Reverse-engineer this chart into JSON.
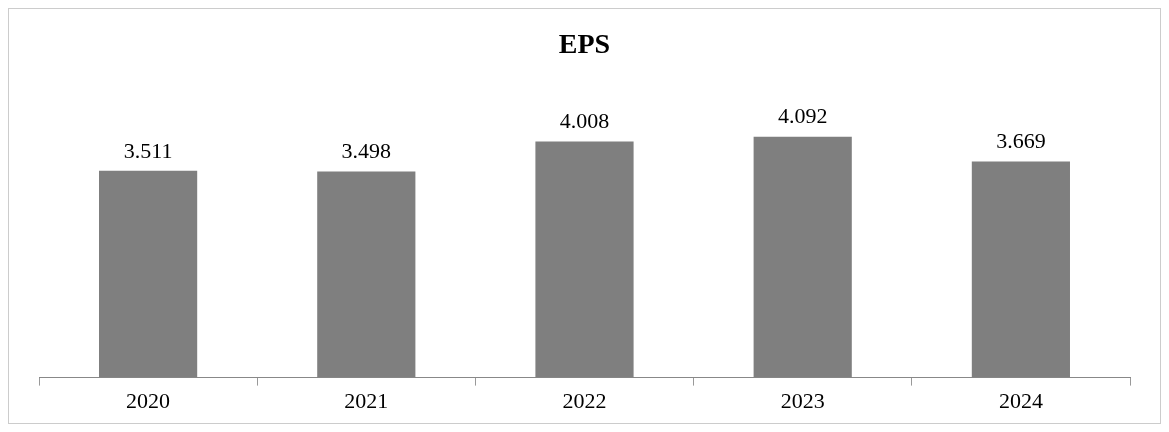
{
  "chart_data": {
    "type": "bar",
    "title": "EPS",
    "categories": [
      "2020",
      "2021",
      "2022",
      "2023",
      "2024"
    ],
    "values": [
      3.511,
      3.498,
      4.008,
      4.092,
      3.669
    ],
    "color": "#7f7f7f",
    "data_labels": true,
    "grid": false,
    "legend": false
  }
}
